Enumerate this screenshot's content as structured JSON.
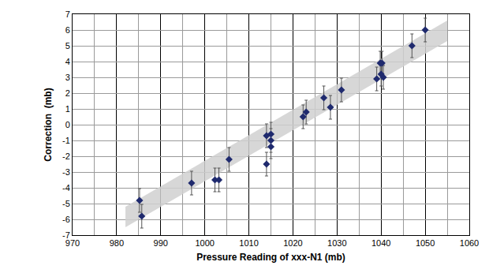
{
  "chart_data": {
    "type": "scatter",
    "x_label": "Pressure Reading of xxx-N1 (mb)",
    "y_label": "Correction  (mb)",
    "x": [
      985.2,
      985.7,
      997,
      1002.3,
      1003.2,
      1005.5,
      1014,
      1014,
      1015,
      1015,
      1015,
      1022.3,
      1023,
      1027,
      1028.5,
      1031,
      1039,
      1039.8,
      1040.2,
      1040,
      1040.5,
      1047,
      1050
    ],
    "values": [
      -4.8,
      -5.8,
      -3.7,
      -3.5,
      -3.5,
      -2.2,
      -0.7,
      -2.5,
      -0.6,
      -1.0,
      -1.4,
      0.5,
      0.8,
      1.7,
      1.1,
      2.2,
      2.9,
      3.9,
      3.9,
      3.2,
      3.0,
      5.0,
      6.0
    ],
    "errors": [
      0.75,
      0.75,
      0.75,
      0.75,
      0.75,
      0.75,
      0.75,
      0.75,
      0.75,
      0.75,
      0.75,
      0.75,
      0.75,
      0.75,
      0.75,
      0.75,
      0.75,
      0.75,
      0.75,
      0.75,
      0.75,
      0.75,
      0.75
    ],
    "band": {
      "x": [
        982,
        1055
      ],
      "upper": [
        -5.2,
        6.6
      ],
      "lower": [
        -6.5,
        5.3
      ],
      "color": "#d0d0d0"
    },
    "color": "#1f2a6e",
    "marker": "diamond",
    "xlim": [
      970,
      1060
    ],
    "xticks": [
      970,
      980,
      990,
      1000,
      1010,
      1020,
      1030,
      1040,
      1050,
      1060
    ],
    "ylim": [
      -7,
      7
    ],
    "yticks": [
      -7,
      -6,
      -5,
      -4,
      -3,
      -2,
      -1,
      0,
      1,
      2,
      3,
      4,
      5,
      6,
      7
    ],
    "grid": true
  }
}
